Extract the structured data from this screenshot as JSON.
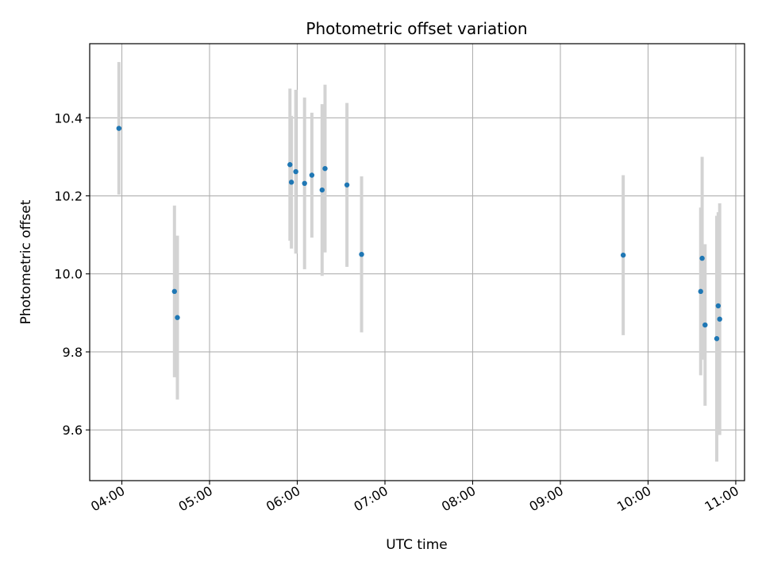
{
  "chart_data": {
    "type": "scatter",
    "title": "Photometric offset variation",
    "xlabel": "UTC time",
    "ylabel": "Photometric offset",
    "x_unit": "UTC time of day (HH:MM)",
    "xlim": [
      "03:38",
      "11:06"
    ],
    "ylim": [
      9.47,
      10.59
    ],
    "x_ticks": [
      "04:00",
      "05:00",
      "06:00",
      "07:00",
      "08:00",
      "09:00",
      "10:00",
      "11:00"
    ],
    "y_ticks": [
      9.6,
      9.8,
      10.0,
      10.2,
      10.4
    ],
    "y_tick_labels": [
      "9.6",
      "9.8",
      "10.0",
      "10.2",
      "10.4"
    ],
    "grid": true,
    "x_tick_rotation_deg": 30,
    "marker_color": "#1f77b4",
    "errorbar_color": "#d3d3d3",
    "series": [
      {
        "points": [
          {
            "x": "03:58",
            "y": 10.373,
            "err": 0.17
          },
          {
            "x": "04:36",
            "y": 9.955,
            "err": 0.22
          },
          {
            "x": "04:38",
            "y": 9.888,
            "err": 0.21
          },
          {
            "x": "05:55",
            "y": 10.28,
            "err": 0.195
          },
          {
            "x": "05:56",
            "y": 10.235,
            "err": 0.17
          },
          {
            "x": "05:59",
            "y": 10.262,
            "err": 0.21
          },
          {
            "x": "06:05",
            "y": 10.232,
            "err": 0.22
          },
          {
            "x": "06:10",
            "y": 10.253,
            "err": 0.16
          },
          {
            "x": "06:17",
            "y": 10.215,
            "err": 0.22
          },
          {
            "x": "06:19",
            "y": 10.27,
            "err": 0.215
          },
          {
            "x": "06:34",
            "y": 10.228,
            "err": 0.21
          },
          {
            "x": "06:44",
            "y": 10.05,
            "err": 0.2
          },
          {
            "x": "09:43",
            "y": 10.048,
            "err": 0.205
          },
          {
            "x": "10:36",
            "y": 9.955,
            "err": 0.215
          },
          {
            "x": "10:37",
            "y": 10.04,
            "err": 0.26
          },
          {
            "x": "10:39",
            "y": 9.869,
            "err": 0.207
          },
          {
            "x": "10:47",
            "y": 9.834,
            "err": 0.315
          },
          {
            "x": "10:48",
            "y": 9.918,
            "err": 0.24
          },
          {
            "x": "10:49",
            "y": 9.884,
            "err": 0.297
          }
        ]
      }
    ]
  }
}
